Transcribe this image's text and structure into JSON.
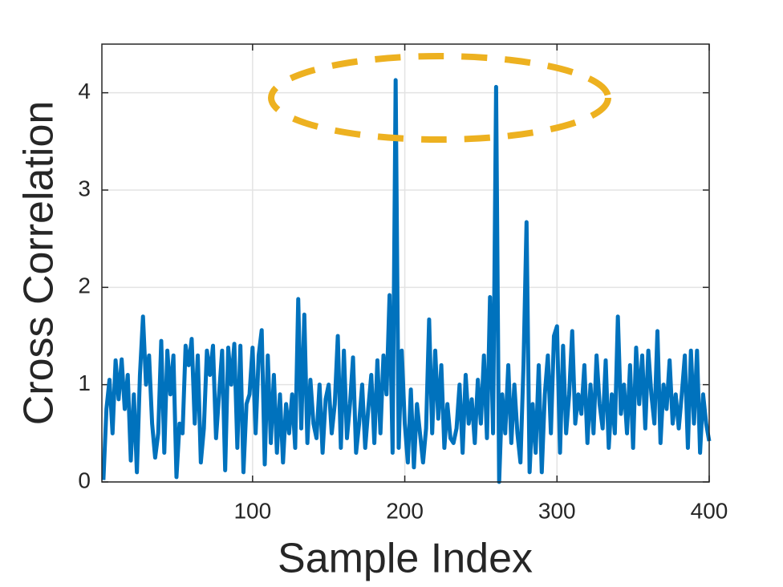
{
  "chart_data": {
    "type": "line",
    "xlabel": "Sample Index",
    "ylabel": "Cross Correlation",
    "x": [
      2,
      4,
      6,
      8,
      10,
      12,
      14,
      16,
      18,
      20,
      22,
      24,
      26,
      28,
      30,
      32,
      34,
      36,
      38,
      40,
      42,
      44,
      46,
      48,
      50,
      52,
      54,
      56,
      58,
      60,
      62,
      64,
      66,
      68,
      70,
      72,
      74,
      76,
      78,
      80,
      82,
      84,
      86,
      88,
      90,
      92,
      94,
      96,
      98,
      100,
      102,
      104,
      106,
      108,
      110,
      112,
      114,
      116,
      118,
      120,
      122,
      124,
      126,
      128,
      130,
      132,
      134,
      136,
      138,
      140,
      142,
      144,
      146,
      148,
      150,
      152,
      154,
      156,
      158,
      160,
      162,
      164,
      166,
      168,
      170,
      172,
      174,
      176,
      178,
      180,
      182,
      184,
      186,
      188,
      190,
      192,
      194,
      196,
      198,
      200,
      202,
      204,
      206,
      208,
      210,
      212,
      214,
      216,
      218,
      220,
      222,
      224,
      226,
      228,
      230,
      232,
      234,
      236,
      238,
      240,
      242,
      244,
      246,
      248,
      250,
      252,
      254,
      256,
      258,
      260,
      262,
      264,
      266,
      268,
      270,
      272,
      274,
      276,
      278,
      280,
      282,
      284,
      286,
      288,
      290,
      292,
      294,
      296,
      298,
      300,
      302,
      304,
      306,
      308,
      310,
      312,
      314,
      316,
      318,
      320,
      322,
      324,
      326,
      328,
      330,
      332,
      334,
      336,
      338,
      340,
      342,
      344,
      346,
      348,
      350,
      352,
      354,
      356,
      358,
      360,
      362,
      364,
      366,
      368,
      370,
      372,
      374,
      376,
      378,
      380,
      382,
      384,
      386,
      388,
      390,
      392,
      394,
      396,
      398,
      400
    ],
    "series": [
      {
        "color": "#0072bd",
        "values": [
          0.02,
          0.75,
          1.05,
          0.5,
          1.25,
          0.85,
          1.26,
          0.75,
          1.1,
          0.22,
          0.9,
          0.1,
          1.1,
          1.7,
          1.0,
          1.3,
          0.6,
          0.25,
          0.5,
          1.45,
          0.3,
          1.35,
          0.9,
          1.3,
          0.05,
          0.6,
          0.5,
          1.4,
          1.2,
          1.47,
          0.6,
          1.3,
          0.2,
          0.55,
          1.35,
          1.1,
          1.4,
          0.45,
          0.9,
          1.35,
          0.12,
          1.38,
          1.0,
          1.42,
          0.35,
          1.4,
          0.1,
          0.8,
          0.9,
          1.38,
          0.5,
          1.3,
          1.56,
          0.18,
          1.3,
          0.4,
          1.1,
          0.3,
          0.9,
          0.2,
          0.8,
          0.5,
          0.9,
          0.35,
          1.88,
          0.55,
          1.72,
          0.4,
          1.05,
          0.6,
          0.45,
          1.0,
          0.3,
          0.85,
          1.0,
          0.5,
          0.8,
          1.5,
          0.35,
          1.35,
          0.45,
          0.8,
          1.28,
          0.3,
          0.6,
          1.0,
          0.35,
          0.75,
          1.1,
          0.4,
          1.25,
          0.5,
          1.3,
          0.9,
          1.92,
          0.3,
          4.13,
          0.35,
          1.35,
          0.6,
          0.2,
          0.95,
          0.15,
          0.8,
          0.5,
          0.2,
          0.55,
          1.67,
          0.5,
          1.35,
          0.65,
          1.2,
          0.35,
          0.8,
          0.45,
          0.4,
          0.55,
          1.0,
          0.3,
          1.1,
          0.6,
          0.85,
          0.4,
          1.05,
          0.6,
          1.3,
          0.45,
          1.9,
          0.5,
          4.06,
          0.0,
          0.9,
          0.5,
          1.2,
          0.4,
          1.0,
          0.5,
          0.2,
          1.2,
          2.67,
          0.1,
          0.8,
          0.3,
          1.2,
          0.1,
          0.9,
          1.3,
          0.5,
          1.5,
          1.6,
          0.3,
          1.4,
          0.5,
          0.9,
          1.55,
          0.6,
          0.9,
          0.7,
          1.2,
          0.4,
          1.0,
          0.5,
          1.3,
          0.8,
          0.55,
          1.25,
          0.35,
          0.9,
          0.5,
          1.7,
          0.7,
          1.0,
          0.5,
          1.2,
          0.35,
          1.38,
          0.8,
          1.3,
          0.55,
          1.35,
          0.9,
          0.6,
          1.55,
          0.4,
          1.0,
          0.75,
          1.25,
          0.6,
          0.9,
          0.55,
          0.9,
          1.3,
          0.35,
          1.35,
          0.6,
          1.35,
          0.3,
          0.9,
          0.6,
          0.42
        ]
      }
    ],
    "xlim": [
      1,
      400
    ],
    "xticks": [
      100,
      200,
      300,
      400
    ],
    "ylim": [
      0,
      4.5
    ],
    "yticks": [
      0,
      1,
      2,
      3,
      4
    ],
    "grid": true
  }
}
